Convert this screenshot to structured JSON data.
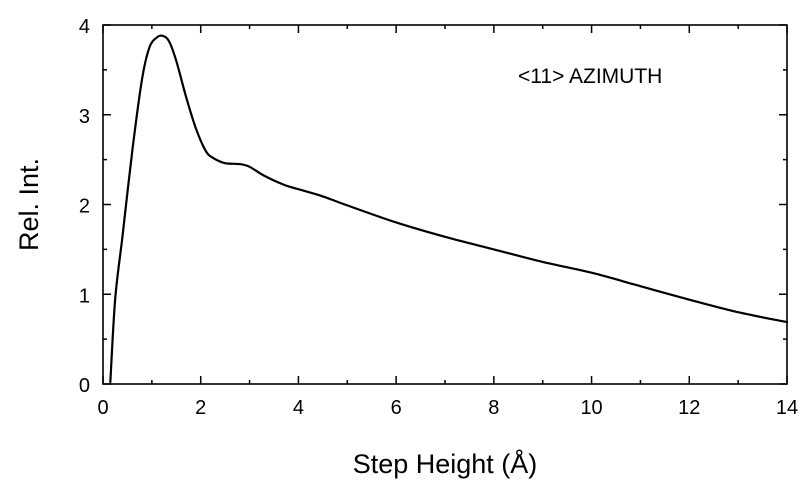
{
  "chart_data": {
    "type": "line",
    "title": "",
    "xlabel": "Step Height (Å)",
    "ylabel": "Rel. Int.",
    "annotation": "<11>  AZIMUTH",
    "xlim": [
      0,
      14
    ],
    "ylim": [
      0,
      4
    ],
    "xticks": [
      0,
      2,
      4,
      6,
      8,
      10,
      12,
      14
    ],
    "yticks": [
      0,
      1,
      2,
      3,
      4
    ],
    "grid": false,
    "series": [
      {
        "color": "#000000",
        "x": [
          0.15,
          0.25,
          0.4,
          0.6,
          0.8,
          0.95,
          1.1,
          1.22,
          1.35,
          1.5,
          1.7,
          1.9,
          2.1,
          2.25,
          2.5,
          2.8,
          3.0,
          3.3,
          3.7,
          4.0,
          4.5,
          5.0,
          6.0,
          7.0,
          8.0,
          9.0,
          10.0,
          11.0,
          12.0,
          13.0,
          14.0
        ],
        "y": [
          0.02,
          0.95,
          1.65,
          2.6,
          3.4,
          3.75,
          3.86,
          3.88,
          3.82,
          3.6,
          3.2,
          2.85,
          2.6,
          2.52,
          2.46,
          2.45,
          2.42,
          2.32,
          2.22,
          2.17,
          2.09,
          1.99,
          1.8,
          1.64,
          1.5,
          1.36,
          1.24,
          1.09,
          0.94,
          0.8,
          0.69
        ]
      }
    ]
  }
}
